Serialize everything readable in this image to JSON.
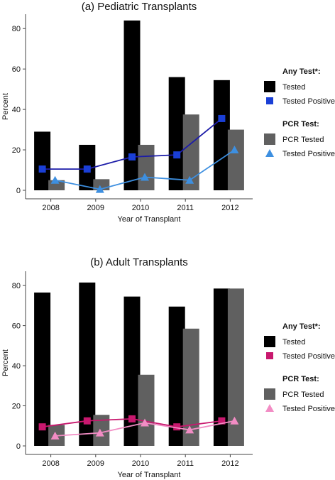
{
  "chart_data": [
    {
      "type": "bar",
      "title": "(a) Pediatric Transplants",
      "xlabel": "Year of Transplant",
      "ylabel": "Percent",
      "categories": [
        "2008",
        "2009",
        "2010",
        "2011",
        "2012"
      ],
      "ylim": [
        0,
        85
      ],
      "yticks": [
        "0",
        "20",
        "40",
        "60",
        "80"
      ],
      "series": [
        {
          "name": "Tested",
          "group": "Any Test*:",
          "kind": "bar",
          "color": "#000000",
          "values": [
            29,
            22.5,
            84,
            56,
            54.5
          ]
        },
        {
          "name": "PCR Tested",
          "group": "PCR Test:",
          "kind": "bar",
          "color": "#606060",
          "values": [
            5,
            5.5,
            22.5,
            37.5,
            30
          ]
        },
        {
          "name": "Tested Positive",
          "group": "Any Test*:",
          "kind": "line",
          "marker": "square",
          "color": "#1a3fd6",
          "line_color": "#1c1ca8",
          "values": [
            10.5,
            10.5,
            16.5,
            17.5,
            35.5
          ]
        },
        {
          "name": "Tested Positive",
          "group": "PCR Test:",
          "kind": "line",
          "marker": "triangle",
          "color": "#3d8fe0",
          "line_color": "#3d8fe0",
          "values": [
            5,
            0.5,
            6.5,
            5,
            20
          ]
        }
      ],
      "legend": [
        {
          "type": "header",
          "label": "Any Test*:"
        },
        {
          "type": "item",
          "label": "Tested",
          "marker": "bar",
          "color": "#000000"
        },
        {
          "type": "item",
          "label": "Tested Positive",
          "marker": "square",
          "color": "#1a3fd6"
        },
        {
          "type": "header",
          "label": "PCR Test:"
        },
        {
          "type": "item",
          "label": "PCR Tested",
          "marker": "bar",
          "color": "#606060"
        },
        {
          "type": "item",
          "label": "Tested Positive",
          "marker": "triangle",
          "color": "#3d8fe0"
        }
      ],
      "legend_position": "right",
      "grid": false
    },
    {
      "type": "bar",
      "title": "(b) Adult Transplants",
      "xlabel": "Year of Transplant",
      "ylabel": "Percent",
      "categories": [
        "2008",
        "2009",
        "2010",
        "2011",
        "2012"
      ],
      "ylim": [
        0,
        85
      ],
      "yticks": [
        "0",
        "20",
        "40",
        "60",
        "80"
      ],
      "series": [
        {
          "name": "Tested",
          "group": "Any Test*:",
          "kind": "bar",
          "color": "#000000",
          "values": [
            76.5,
            81.5,
            74.5,
            69.5,
            78.5
          ]
        },
        {
          "name": "PCR Tested",
          "group": "PCR Test:",
          "kind": "bar",
          "color": "#606060",
          "values": [
            10.5,
            15.5,
            35.5,
            58.5,
            78.5
          ]
        },
        {
          "name": "Tested Positive",
          "group": "Any Test*:",
          "kind": "line",
          "marker": "square",
          "color": "#c8186e",
          "line_color": "#c8186e",
          "values": [
            9.5,
            12.5,
            13.5,
            9.5,
            12.5
          ]
        },
        {
          "name": "Tested Positive",
          "group": "PCR Test:",
          "kind": "line",
          "marker": "triangle",
          "color": "#f28cc4",
          "line_color": "#f28cc4",
          "values": [
            5,
            6.5,
            11.5,
            8,
            12.5
          ]
        }
      ],
      "legend": [
        {
          "type": "header",
          "label": "Any Test*:"
        },
        {
          "type": "item",
          "label": "Tested",
          "marker": "bar",
          "color": "#000000"
        },
        {
          "type": "item",
          "label": "Tested Positive",
          "marker": "square",
          "color": "#c8186e"
        },
        {
          "type": "header",
          "label": "PCR Test:"
        },
        {
          "type": "item",
          "label": "PCR Tested",
          "marker": "bar",
          "color": "#606060"
        },
        {
          "type": "item",
          "label": "Tested Positive",
          "marker": "triangle",
          "color": "#f28cc4"
        }
      ],
      "legend_position": "right",
      "grid": false
    }
  ]
}
